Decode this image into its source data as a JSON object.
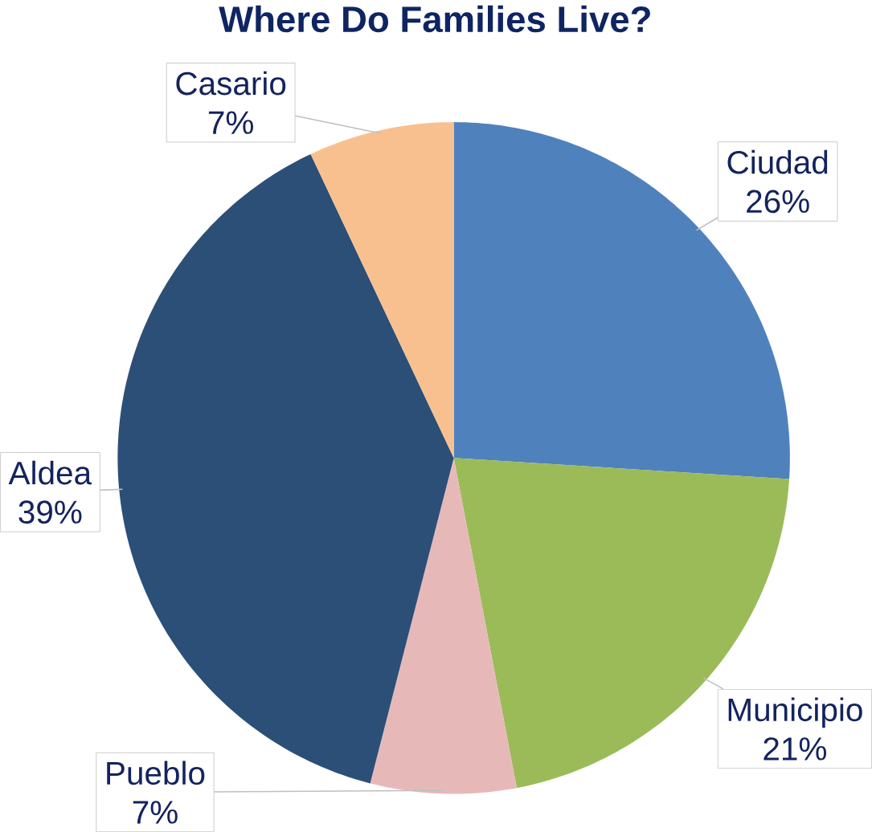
{
  "chart_data": {
    "type": "pie",
    "title": "Where Do Families Live?",
    "categories": [
      "Ciudad",
      "Municipio",
      "Pueblo",
      "Aldea",
      "Casario"
    ],
    "values": [
      26,
      21,
      7,
      39,
      7
    ],
    "value_labels": [
      "26%",
      "21%",
      "7%",
      "39%",
      "7%"
    ],
    "colors": [
      "#4f81bd",
      "#9bbb59",
      "#e6b9b8",
      "#2c4f77",
      "#f9c08f"
    ]
  }
}
